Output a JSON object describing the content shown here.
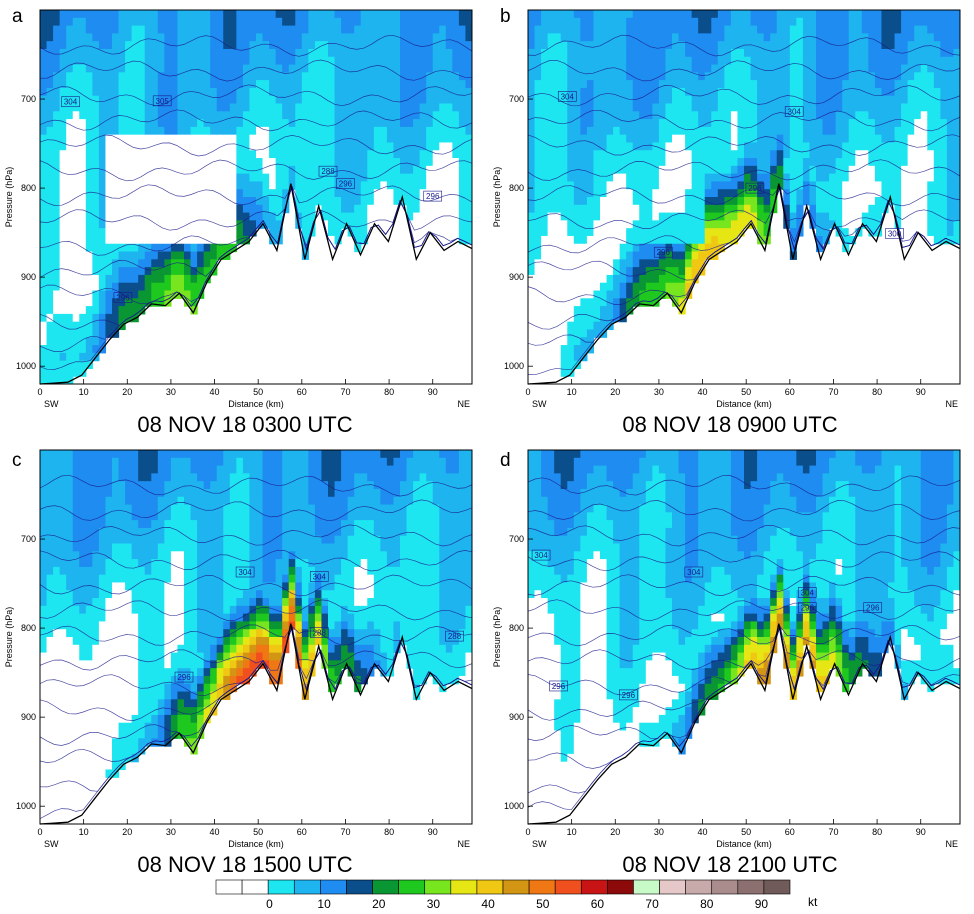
{
  "chart_data": [
    {
      "type": "heatmap",
      "panel_label": "a",
      "title": "08 NOV 18 0300 UTC",
      "xlabel": "Distance (km)",
      "ylabel": "Pressure (hPa)",
      "xlim": [
        0,
        99
      ],
      "ylim": [
        1020,
        600
      ],
      "x_ticks": [
        "0",
        "10",
        "20",
        "30",
        "40",
        "50",
        "60",
        "70",
        "80",
        "90"
      ],
      "y_ticks": [
        "700",
        "800",
        "900",
        "1000"
      ],
      "left_end_label": "SW",
      "right_end_label": "NE",
      "isentrope_labels": [
        {
          "text": "304",
          "x": 7,
          "p": 703
        },
        {
          "text": "305",
          "x": 28,
          "p": 702
        },
        {
          "text": "288",
          "x": 66,
          "p": 781
        },
        {
          "text": "296",
          "x": 70,
          "p": 795
        },
        {
          "text": "296",
          "x": 90,
          "p": 809
        },
        {
          "text": "296",
          "x": 19,
          "p": 923
        }
      ],
      "terrain_p": [
        1020,
        1019,
        1018,
        1010,
        990,
        970,
        953,
        945,
        930,
        932,
        918,
        940,
        905,
        880,
        870,
        860,
        840,
        870,
        795,
        880,
        820,
        880,
        840,
        875,
        840,
        860,
        810,
        880,
        850,
        870,
        860,
        868
      ],
      "jet_core": {
        "x": 34,
        "p": 910,
        "speed": 38
      }
    },
    {
      "type": "heatmap",
      "panel_label": "b",
      "title": "08 NOV 18 0900 UTC",
      "xlabel": "Distance (km)",
      "ylabel": "Pressure (hPa)",
      "xlim": [
        0,
        99
      ],
      "ylim": [
        1020,
        600
      ],
      "x_ticks": [
        "0",
        "10",
        "20",
        "30",
        "40",
        "50",
        "60",
        "70",
        "80",
        "90"
      ],
      "y_ticks": [
        "700",
        "800",
        "900",
        "1000"
      ],
      "left_end_label": "SW",
      "right_end_label": "NE",
      "isentrope_labels": [
        {
          "text": "304",
          "x": 9,
          "p": 697
        },
        {
          "text": "304",
          "x": 61,
          "p": 714
        },
        {
          "text": "296",
          "x": 52,
          "p": 800
        },
        {
          "text": "296",
          "x": 31,
          "p": 872
        },
        {
          "text": "300",
          "x": 84,
          "p": 851
        }
      ],
      "terrain_p": [
        1020,
        1019,
        1018,
        1010,
        990,
        970,
        953,
        945,
        930,
        932,
        918,
        940,
        905,
        880,
        870,
        860,
        840,
        870,
        795,
        880,
        820,
        880,
        840,
        875,
        840,
        860,
        810,
        880,
        850,
        870,
        860,
        868
      ],
      "jet_core": {
        "x": 43,
        "p": 875,
        "speed": 48
      }
    },
    {
      "type": "heatmap",
      "panel_label": "c",
      "title": "08 NOV 18 1500 UTC",
      "xlabel": "Distance (km)",
      "ylabel": "Pressure (hPa)",
      "xlim": [
        0,
        99
      ],
      "ylim": [
        1020,
        600
      ],
      "x_ticks": [
        "0",
        "10",
        "20",
        "30",
        "40",
        "50",
        "60",
        "70",
        "80",
        "90"
      ],
      "y_ticks": [
        "700",
        "800",
        "900",
        "1000"
      ],
      "left_end_label": "SW",
      "right_end_label": "NE",
      "isentrope_labels": [
        {
          "text": "304",
          "x": 47,
          "p": 737
        },
        {
          "text": "304",
          "x": 64,
          "p": 742
        },
        {
          "text": "288",
          "x": 64,
          "p": 805
        },
        {
          "text": "288",
          "x": 95,
          "p": 809
        },
        {
          "text": "296",
          "x": 33,
          "p": 855
        }
      ],
      "terrain_p": [
        1020,
        1019,
        1018,
        1010,
        990,
        970,
        953,
        945,
        930,
        932,
        918,
        940,
        905,
        880,
        870,
        860,
        840,
        870,
        795,
        880,
        820,
        880,
        840,
        875,
        840,
        860,
        810,
        880,
        850,
        870,
        860,
        868
      ],
      "jet_core": {
        "x": 52,
        "p": 845,
        "speed": 62
      }
    },
    {
      "type": "heatmap",
      "panel_label": "d",
      "title": "08 NOV 18 2100 UTC",
      "xlabel": "Distance (km)",
      "ylabel": "Pressure (hPa)",
      "xlim": [
        0,
        99
      ],
      "ylim": [
        1020,
        600
      ],
      "x_ticks": [
        "0",
        "10",
        "20",
        "30",
        "40",
        "50",
        "60",
        "70",
        "80",
        "90"
      ],
      "y_ticks": [
        "700",
        "800",
        "900",
        "1000"
      ],
      "left_end_label": "SW",
      "right_end_label": "NE",
      "isentrope_labels": [
        {
          "text": "304",
          "x": 3,
          "p": 718
        },
        {
          "text": "304",
          "x": 38,
          "p": 737
        },
        {
          "text": "304",
          "x": 64,
          "p": 760
        },
        {
          "text": "296",
          "x": 64,
          "p": 777
        },
        {
          "text": "296",
          "x": 79,
          "p": 777
        },
        {
          "text": "296",
          "x": 7,
          "p": 865
        },
        {
          "text": "296",
          "x": 23,
          "p": 875
        }
      ],
      "terrain_p": [
        1020,
        1019,
        1018,
        1010,
        990,
        970,
        953,
        945,
        930,
        932,
        918,
        940,
        905,
        880,
        870,
        860,
        840,
        870,
        795,
        880,
        820,
        880,
        840,
        875,
        840,
        860,
        810,
        880,
        850,
        870,
        860,
        868
      ],
      "jet_core": {
        "x": 60,
        "p": 790,
        "speed": 52
      }
    }
  ],
  "colorbar": {
    "unit": "kt",
    "tick_labels": [
      "0",
      "10",
      "20",
      "30",
      "40",
      "50",
      "60",
      "70",
      "80",
      "90"
    ],
    "tick_values": [
      0,
      10,
      20,
      30,
      40,
      50,
      60,
      70,
      80,
      90
    ],
    "boundaries": [
      -5,
      0,
      5,
      10,
      15,
      20,
      25,
      30,
      35,
      40,
      45,
      50,
      55,
      60,
      65,
      70,
      75,
      80,
      85,
      90,
      95,
      100
    ],
    "colors": [
      "#ffffff",
      "#ffffff",
      "#1ee6f0",
      "#1eb4f0",
      "#1e8cf0",
      "#0a4e8c",
      "#0a9632",
      "#1ec81e",
      "#78e61e",
      "#e6e614",
      "#f0c814",
      "#d29614",
      "#f07814",
      "#f0501e",
      "#c81414",
      "#8c0a0a",
      "#c8fac8",
      "#e6c8c8",
      "#c8aaaa",
      "#aa8c8c",
      "#8c7070",
      "#705a5a"
    ]
  }
}
